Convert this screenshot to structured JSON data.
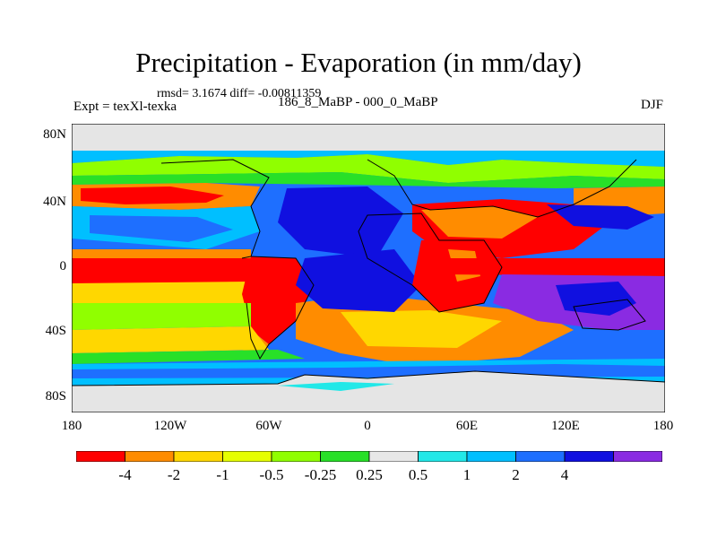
{
  "header": {
    "title": "Precipitation - Evaporation (in mm/day)",
    "stats": "rmsd= 3.1674 diff= -0.00811359",
    "experiment": "Expt = texXl-texka",
    "subtitle": "186_8_MaBP - 000_0_MaBP",
    "season": "DJF"
  },
  "map": {
    "projection": "cylindrical equidistant",
    "lat_labels": [
      "80N",
      "40N",
      "0",
      "40S",
      "80S"
    ],
    "lon_labels": [
      "180",
      "120W",
      "60W",
      "0",
      "60E",
      "120E",
      "180"
    ],
    "land_outline_color": "#000000",
    "no_data_color": "#e5e5e5"
  },
  "colorbar": {
    "colors": [
      "#ff0000",
      "#ff8c00",
      "#ffd700",
      "#e6ff00",
      "#90ff00",
      "#28e028",
      "#e8e8e8",
      "#22e8e8",
      "#00bfff",
      "#1e6fff",
      "#1010e0",
      "#8a2be2"
    ],
    "labels": [
      "-4",
      "-2",
      "-1",
      "-0.5",
      "-0.25",
      "0.25",
      "0.5",
      "1",
      "2",
      "4"
    ]
  }
}
